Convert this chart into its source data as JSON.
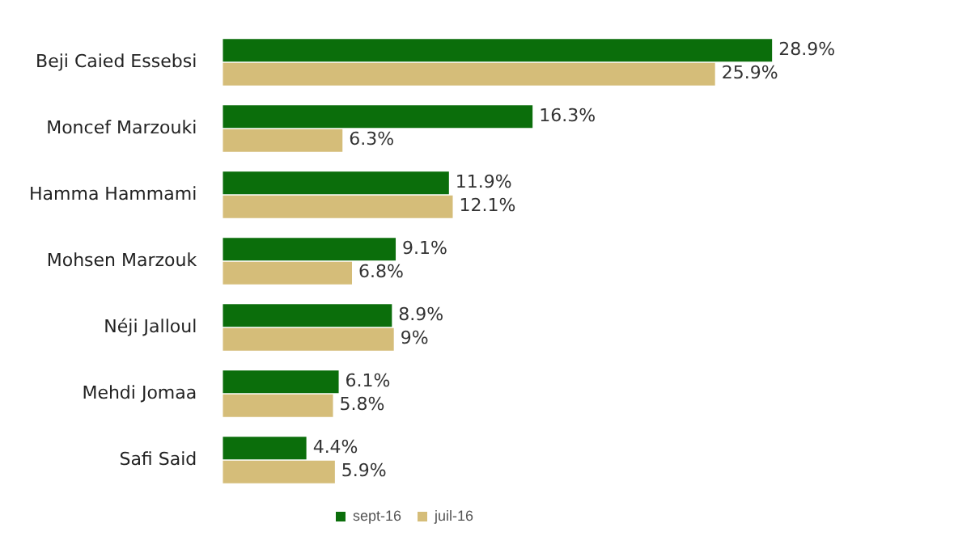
{
  "chart_data": {
    "type": "bar",
    "orientation": "horizontal",
    "categories": [
      "Beji Caied Essebsi",
      "Moncef Marzouki",
      "Hamma Hammami",
      "Mohsen Marzouk",
      "Néji Jalloul",
      "Mehdi Jomaa",
      "Safi Said"
    ],
    "series": [
      {
        "name": "sept-16",
        "color": "#0b6e0b",
        "values": [
          28.9,
          16.3,
          11.9,
          9.1,
          8.9,
          6.1,
          4.4
        ],
        "value_labels": [
          "28.9%",
          "16.3%",
          "11.9%",
          "9.1%",
          "8.9%",
          "6.1%",
          "4.4%"
        ]
      },
      {
        "name": "juil-16",
        "color": "#d5bd79",
        "values": [
          25.9,
          6.3,
          12.1,
          6.8,
          9,
          5.8,
          5.9
        ],
        "value_labels": [
          "25.9%",
          "6.3%",
          "12.1%",
          "6.8%",
          "9%",
          "5.8%",
          "5.9%"
        ]
      }
    ],
    "tick_labels": "y",
    "grid": false,
    "legend": "bottom"
  }
}
